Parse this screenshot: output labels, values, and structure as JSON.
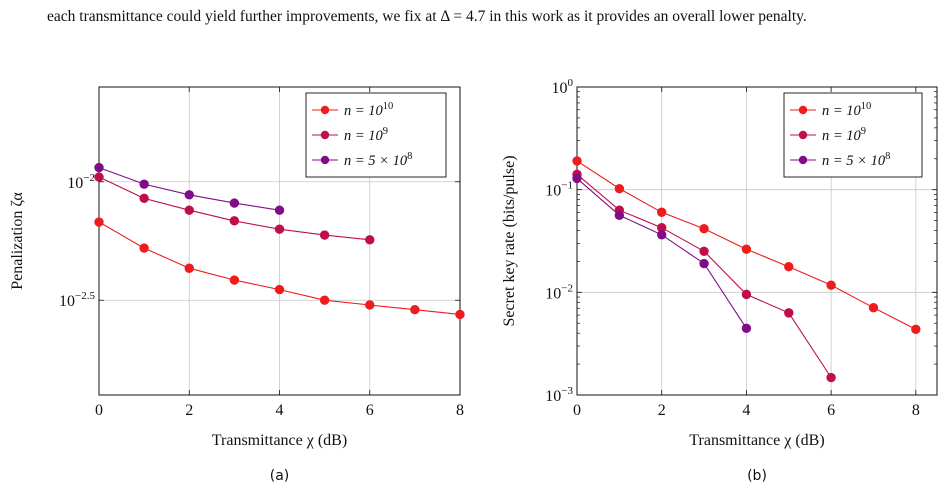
{
  "intro_text": "each transmittance could yield further improvements, we fix at Δ = 4.7 in this work as it provides an overall lower penalty.",
  "chart_data": [
    {
      "type": "line",
      "caption": "(a)",
      "xlabel": "Transmittance χ (dB)",
      "ylabel": "Penalization ζα",
      "y_scale": "log",
      "xlim": [
        0,
        8
      ],
      "ylim_log10": [
        -2.9,
        -1.6
      ],
      "x_ticks": [
        {
          "v": 0,
          "label": "0"
        },
        {
          "v": 2,
          "label": "2"
        },
        {
          "v": 4,
          "label": "4"
        },
        {
          "v": 6,
          "label": "6"
        },
        {
          "v": 8,
          "label": "8"
        }
      ],
      "y_ticks": [
        {
          "log": -2,
          "base": "10",
          "exp": "−2"
        },
        {
          "log": -2.5,
          "base": "10",
          "exp": "−2.5"
        }
      ],
      "grid": true,
      "legend_position": "top-right",
      "series": [
        {
          "name_base": "n = 10",
          "name_exp": "10",
          "color": "#ee1c1c",
          "x": [
            0,
            1,
            2,
            3,
            4,
            5,
            6,
            7,
            8
          ],
          "log10_y": [
            -2.17,
            -2.28,
            -2.365,
            -2.415,
            -2.455,
            -2.5,
            -2.52,
            -2.54,
            -2.56
          ]
        },
        {
          "name_base": "n = 10",
          "name_exp": "9",
          "color": "#bf0f4a",
          "x": [
            0,
            1,
            2,
            3,
            4,
            5,
            6
          ],
          "log10_y": [
            -1.98,
            -2.07,
            -2.12,
            -2.165,
            -2.2,
            -2.225,
            -2.245
          ]
        },
        {
          "name_base": "n = 5 × 10",
          "name_exp": "8",
          "color": "#800d88",
          "x": [
            0,
            1,
            2,
            3,
            4
          ],
          "log10_y": [
            -1.94,
            -2.01,
            -2.055,
            -2.09,
            -2.12
          ]
        }
      ]
    },
    {
      "type": "line",
      "caption": "(b)",
      "xlabel": "Transmittance χ (dB)",
      "ylabel": "Secret key rate (bits/pulse)",
      "y_scale": "log",
      "xlim": [
        0,
        8.5
      ],
      "ylim_log10": [
        -3,
        0
      ],
      "x_ticks": [
        {
          "v": 0,
          "label": "0"
        },
        {
          "v": 2,
          "label": "2"
        },
        {
          "v": 4,
          "label": "4"
        },
        {
          "v": 6,
          "label": "6"
        },
        {
          "v": 8,
          "label": "8"
        }
      ],
      "y_ticks": [
        {
          "log": 0,
          "base": "10",
          "exp": "0"
        },
        {
          "log": -1,
          "base": "10",
          "exp": "−1"
        },
        {
          "log": -2,
          "base": "10",
          "exp": "−2"
        },
        {
          "log": -3,
          "base": "10",
          "exp": "−3"
        }
      ],
      "grid": true,
      "legend_position": "top-right",
      "series": [
        {
          "name_base": "n = 10",
          "name_exp": "10",
          "color": "#ee1c1c",
          "x": [
            0,
            1,
            2,
            3,
            4,
            5,
            6,
            7,
            8
          ],
          "log10_y": [
            -0.72,
            -0.99,
            -1.22,
            -1.38,
            -1.58,
            -1.75,
            -1.93,
            -2.15,
            -2.36
          ]
        },
        {
          "name_base": "n = 10",
          "name_exp": "9",
          "color": "#bf0f4a",
          "x": [
            0,
            1,
            2,
            3,
            4,
            5,
            6
          ],
          "log10_y": [
            -0.85,
            -1.2,
            -1.37,
            -1.6,
            -2.02,
            -2.2,
            -2.83
          ]
        },
        {
          "name_base": "n = 5 × 10",
          "name_exp": "8",
          "color": "#800d88",
          "x": [
            0,
            1,
            2,
            3,
            4
          ],
          "log10_y": [
            -0.89,
            -1.25,
            -1.44,
            -1.72,
            -2.35
          ]
        }
      ]
    }
  ]
}
